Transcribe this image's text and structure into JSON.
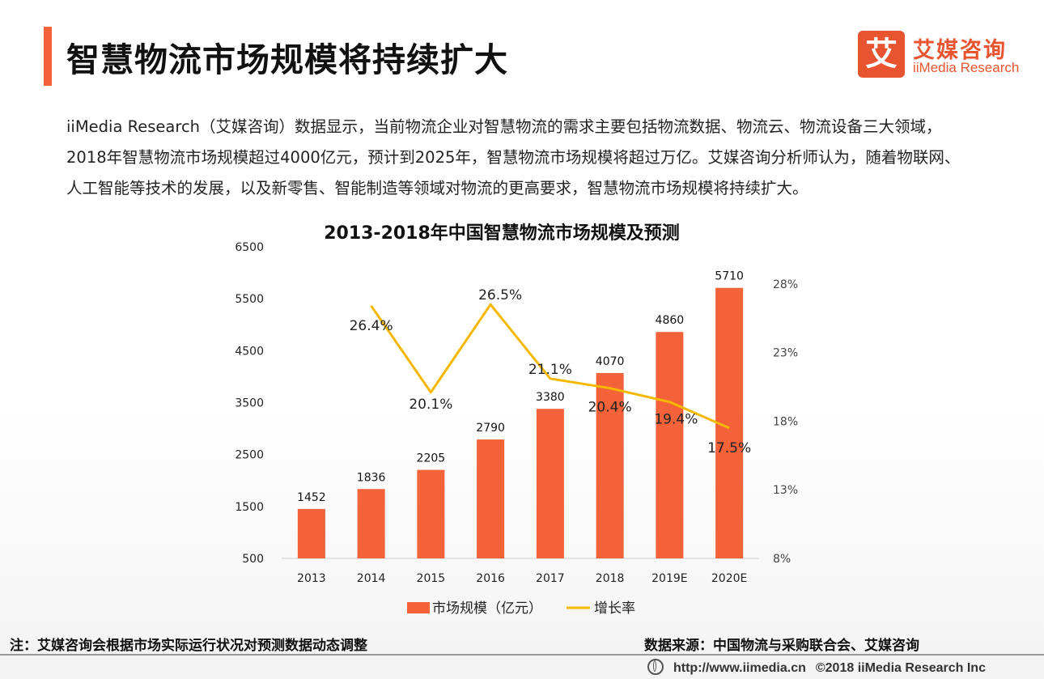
{
  "header": {
    "title": "智慧物流市场规模将持续扩大",
    "logo_mark": "艾",
    "logo_cn": "艾媒咨询",
    "logo_en": "iiMedia Research"
  },
  "intro": "iiMedia Research（艾媒咨询）数据显示，当前物流企业对智慧物流的需求主要包括物流数据、物流云、物流设备三大领域，2018年智慧物流市场规模超过4000亿元，预计到2025年，智慧物流市场规模将超过万亿。艾媒咨询分析师认为，随着物联网、人工智能等技术的发展，以及新零售、智能制造等领域对物流的更高要求，智慧物流市场规模将持续扩大。",
  "chart_data": {
    "type": "bar",
    "title": "2013-2018年中国智慧物流市场规模及预测",
    "categories": [
      "2013",
      "2014",
      "2015",
      "2016",
      "2017",
      "2018",
      "2019E",
      "2020E"
    ],
    "series": [
      {
        "name": "市场规模（亿元）",
        "type": "bar",
        "axis": "left",
        "color": "#f4623a",
        "values": [
          1452,
          1836,
          2205,
          2790,
          3380,
          4070,
          4860,
          5710
        ],
        "labels": [
          "1452",
          "1836",
          "2205",
          "2790",
          "3380",
          "4070",
          "4860",
          "5710"
        ]
      },
      {
        "name": "增长率",
        "type": "line",
        "axis": "right",
        "color": "#f5b800",
        "values": [
          null,
          26.4,
          20.1,
          26.5,
          21.1,
          20.4,
          19.4,
          17.5
        ],
        "labels": [
          "",
          "26.4%",
          "20.1%",
          "26.5%",
          "21.1%",
          "20.4%",
          "19.4%",
          "17.5%"
        ]
      }
    ],
    "y_left": {
      "ticks": [
        "6500",
        "5500",
        "4500",
        "3500",
        "2500",
        "1500",
        "500"
      ],
      "range": [
        500,
        6500
      ]
    },
    "y_right": {
      "ticks": [
        "28%",
        "23%",
        "18%",
        "13%",
        "8%"
      ],
      "range": [
        8,
        30.7
      ]
    },
    "grid": false,
    "legend_position": "bottom"
  },
  "footer": {
    "note": "注：艾媒咨询会根据市场实际运行状况对预测数据动态调整",
    "source": "数据来源：中国物流与采购联合会、艾媒咨询",
    "url": "http://www.iimedia.cn",
    "copyright": "©2018  iiMedia Research  Inc"
  }
}
